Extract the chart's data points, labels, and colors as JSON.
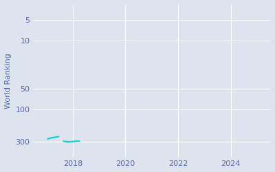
{
  "ylabel": "World Ranking",
  "background_color": "#dde4ed",
  "line_color": "#00d4d4",
  "series1_x": [
    2017.05,
    2017.15,
    2017.3,
    2017.45
  ],
  "series1_y": [
    272,
    265,
    258,
    252
  ],
  "series2_x": [
    2017.65,
    2017.72,
    2017.8,
    2017.88,
    2017.95,
    2018.05,
    2018.15,
    2018.25
  ],
  "series2_y": [
    294,
    297,
    299,
    300,
    299,
    296,
    293,
    294
  ],
  "xlim": [
    2016.5,
    2025.5
  ],
  "ymin": 3,
  "ymax": 500,
  "yticks": [
    300,
    100,
    50,
    10,
    5
  ],
  "xticks": [
    2018,
    2020,
    2022,
    2024
  ],
  "grid_color": "#ffffff",
  "tick_color": "#5566aa"
}
